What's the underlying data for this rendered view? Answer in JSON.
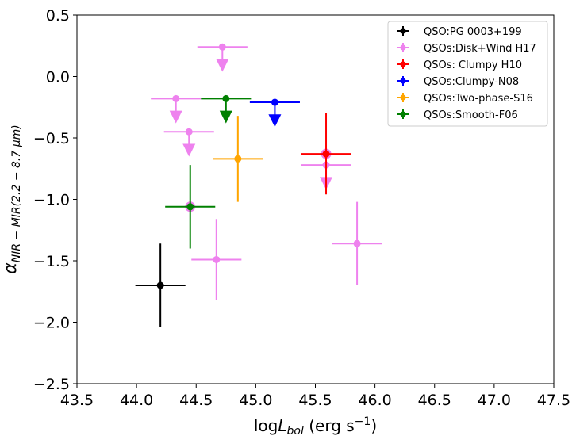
{
  "chart_data": {
    "type": "scatter",
    "title": "",
    "xlabel": "logL_bol (erg s^-1)",
    "ylabel": "α_NIR−MIR(2.2−8.7 μm)",
    "xlim": [
      43.5,
      47.5
    ],
    "ylim": [
      -2.5,
      0.5
    ],
    "xticks": [
      43.5,
      44.0,
      44.5,
      45.0,
      45.5,
      46.0,
      46.5,
      47.0,
      47.5
    ],
    "xtick_labels": [
      "43.5",
      "44.0",
      "44.5",
      "45.0",
      "45.5",
      "46.0",
      "46.5",
      "47.0",
      "47.5"
    ],
    "yticks": [
      0.5,
      0.0,
      -0.5,
      -1.0,
      -1.5,
      -2.0,
      -2.5
    ],
    "ytick_labels": [
      "0.5",
      "0.0",
      "−0.5",
      "−1.0",
      "−1.5",
      "−2.0",
      "−2.5"
    ],
    "grid": false,
    "legend_position": "top-right",
    "series": [
      {
        "name": "QSO:PG 0003+199",
        "color": "#000000",
        "points": [
          {
            "x": 44.2,
            "y": -1.7,
            "xerr": 0.21,
            "yerr": 0.34,
            "upper_limit": false
          }
        ]
      },
      {
        "name": "QSOs:Disk+Wind H17",
        "color": "#ee82ee",
        "points": [
          {
            "x": 44.72,
            "y": 0.24,
            "xerr": 0.21,
            "yerr": 0,
            "upper_limit": true
          },
          {
            "x": 44.33,
            "y": -0.18,
            "xerr": 0.21,
            "yerr": 0,
            "upper_limit": true
          },
          {
            "x": 44.44,
            "y": -0.45,
            "xerr": 0.21,
            "yerr": 0,
            "upper_limit": true
          },
          {
            "x": 45.59,
            "y": -0.72,
            "xerr": 0.21,
            "yerr": 0,
            "upper_limit": true
          },
          {
            "x": 44.45,
            "y": -1.06,
            "xerr": 0,
            "yerr": 0,
            "upper_limit": false
          },
          {
            "x": 44.67,
            "y": -1.49,
            "xerr": 0.21,
            "yerr": 0.33,
            "upper_limit": false
          },
          {
            "x": 45.85,
            "y": -1.36,
            "xerr": 0.21,
            "yerr": 0.34,
            "upper_limit": false
          },
          {
            "x": 45.59,
            "y": -0.63,
            "xerr": 0,
            "yerr": 0,
            "upper_limit": false
          }
        ]
      },
      {
        "name": "QSOs: Clumpy H10",
        "color": "#ff0000",
        "points": [
          {
            "x": 45.59,
            "y": -0.63,
            "xerr": 0.21,
            "yerr": 0.33,
            "upper_limit": false
          }
        ]
      },
      {
        "name": "QSOs:Clumpy-N08",
        "color": "#0000ff",
        "points": [
          {
            "x": 45.16,
            "y": -0.21,
            "xerr": 0.21,
            "yerr": 0,
            "upper_limit": true
          }
        ]
      },
      {
        "name": "QSOs:Two-phase-S16",
        "color": "#ffa500",
        "points": [
          {
            "x": 44.85,
            "y": -0.67,
            "xerr": 0.21,
            "yerr": 0.35,
            "upper_limit": false
          }
        ]
      },
      {
        "name": "QSOs:Smooth-F06",
        "color": "#008000",
        "points": [
          {
            "x": 44.75,
            "y": -0.18,
            "xerr": 0.21,
            "yerr": 0,
            "upper_limit": true
          },
          {
            "x": 44.45,
            "y": -1.06,
            "xerr": 0.21,
            "yerr": 0.34,
            "upper_limit": false
          }
        ]
      }
    ]
  }
}
